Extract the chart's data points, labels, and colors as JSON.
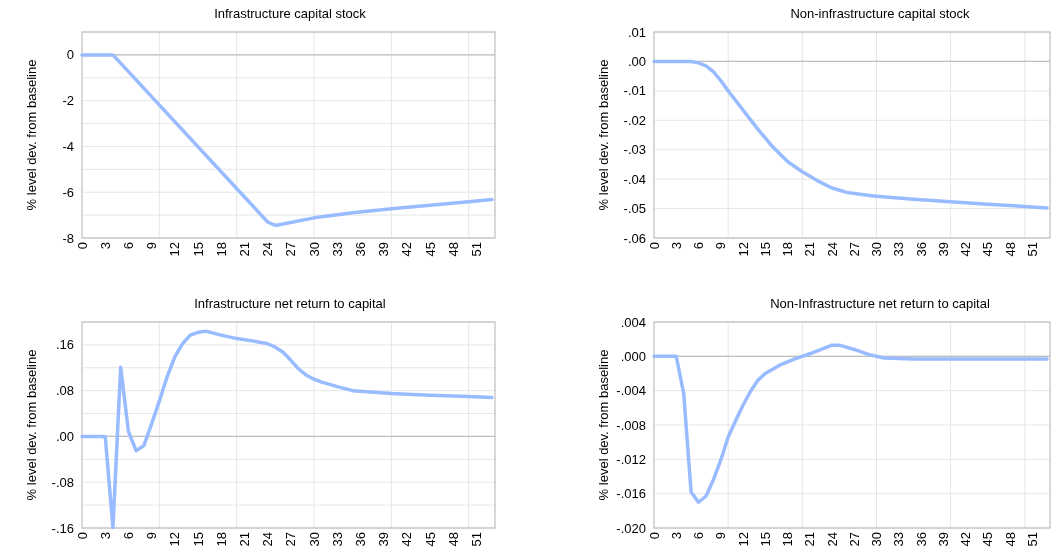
{
  "chart_data": [
    {
      "type": "line",
      "title": "Infrastructure capital stock",
      "ylabel": "% level dev. from baseline",
      "xlim": [
        0,
        53.4
      ],
      "ylim": [
        -8,
        1
      ],
      "grid": true,
      "xticks": [
        0,
        3,
        6,
        9,
        12,
        15,
        18,
        21,
        24,
        27,
        30,
        33,
        36,
        39,
        42,
        45,
        48,
        51,
        {
          "value": 10,
          "label": null
        },
        {
          "value": 20,
          "label": null
        },
        {
          "value": 30,
          "label": null
        },
        {
          "value": 40,
          "label": null
        },
        {
          "value": 50,
          "label": null
        }
      ],
      "yticks": [
        {
          "value": 1,
          "label": null
        },
        0,
        {
          "value": -1,
          "label": null
        },
        -2,
        {
          "value": -3,
          "label": null
        },
        -4,
        {
          "value": -5,
          "label": null
        },
        -6,
        {
          "value": -7,
          "label": null
        },
        -8
      ],
      "ref_lines": [
        {
          "axis": "y",
          "value": 0,
          "color": "#bfbfbf"
        }
      ],
      "x": [
        0,
        1,
        2,
        3,
        4,
        24,
        25,
        30,
        35,
        40,
        45,
        50,
        53
      ],
      "series": [
        {
          "color": "#99bbff",
          "values": [
            0,
            0,
            0,
            0,
            0,
            -7.3,
            -7.45,
            -7.12,
            -6.9,
            -6.72,
            -6.57,
            -6.42,
            -6.32
          ]
        }
      ]
    },
    {
      "type": "line",
      "title": "Non-infrastructure capital stock",
      "ylabel": "% level dev. from baseline",
      "xlim": [
        0,
        53.4
      ],
      "ylim": [
        -0.06,
        0.01
      ],
      "grid": true,
      "xticks": [
        0,
        3,
        6,
        9,
        12,
        15,
        18,
        21,
        24,
        27,
        30,
        33,
        36,
        39,
        42,
        45,
        48,
        51,
        {
          "value": 10,
          "label": null
        },
        {
          "value": 20,
          "label": null
        },
        {
          "value": 30,
          "label": null
        },
        {
          "value": 40,
          "label": null
        },
        {
          "value": 50,
          "label": null
        }
      ],
      "yticks": [
        {
          "value": 0.01,
          "label": ".01"
        },
        {
          "value": 0,
          "label": ".00"
        },
        {
          "value": -0.01,
          "label": "-.01"
        },
        {
          "value": -0.02,
          "label": "-.02"
        },
        {
          "value": -0.03,
          "label": "-.03"
        },
        {
          "value": -0.04,
          "label": "-.04"
        },
        {
          "value": -0.05,
          "label": "-.05"
        },
        {
          "value": -0.06,
          "label": "-.06"
        }
      ],
      "ref_lines": [
        {
          "axis": "y",
          "value": 0,
          "color": "#bfbfbf"
        }
      ],
      "x": [
        0,
        1,
        2,
        3,
        4,
        5,
        6,
        7,
        8,
        9,
        10,
        12,
        14,
        16,
        18,
        20,
        22,
        24,
        26,
        28,
        30,
        35,
        40,
        45,
        50,
        53
      ],
      "series": [
        {
          "color": "#99bbff",
          "values": [
            0,
            0,
            0,
            0,
            0,
            0,
            -0.0005,
            -0.0015,
            -0.0035,
            -0.0065,
            -0.01,
            -0.0165,
            -0.023,
            -0.029,
            -0.034,
            -0.0375,
            -0.0405,
            -0.043,
            -0.0445,
            -0.0452,
            -0.0458,
            -0.0468,
            -0.0477,
            -0.0485,
            -0.0493,
            -0.0498
          ]
        }
      ]
    },
    {
      "type": "line",
      "title": "Infrastructure net return to capital",
      "ylabel": "% level dev. from baseline",
      "xlim": [
        0,
        53.4
      ],
      "ylim": [
        -0.16,
        0.2
      ],
      "grid": true,
      "xticks": [
        0,
        3,
        6,
        9,
        12,
        15,
        18,
        21,
        24,
        27,
        30,
        33,
        36,
        39,
        42,
        45,
        48,
        51,
        {
          "value": 10,
          "label": null
        },
        {
          "value": 20,
          "label": null
        },
        {
          "value": 30,
          "label": null
        },
        {
          "value": 40,
          "label": null
        },
        {
          "value": 50,
          "label": null
        }
      ],
      "yticks": [
        {
          "value": 0.2,
          "label": null
        },
        {
          "value": 0.16,
          "label": ".16"
        },
        {
          "value": 0.12,
          "label": null
        },
        {
          "value": 0.08,
          "label": ".08"
        },
        {
          "value": 0.04,
          "label": null
        },
        {
          "value": 0,
          "label": ".00"
        },
        {
          "value": -0.04,
          "label": null
        },
        {
          "value": -0.08,
          "label": "-.08"
        },
        {
          "value": -0.12,
          "label": null
        },
        {
          "value": -0.16,
          "label": "-.16"
        }
      ],
      "ref_lines": [
        {
          "axis": "y",
          "value": 0,
          "color": "#bfbfbf"
        }
      ],
      "x": [
        0,
        1,
        2,
        3,
        4,
        5,
        6,
        7,
        8,
        9,
        10,
        11,
        12,
        13,
        14,
        15,
        16,
        18,
        20,
        22,
        24,
        25,
        26,
        27,
        28,
        29,
        30,
        31,
        33,
        35,
        40,
        45,
        50,
        53
      ],
      "series": [
        {
          "color": "#99bbff",
          "values": [
            0,
            0,
            0,
            0,
            -0.159,
            0.121,
            0.009,
            -0.025,
            -0.016,
            0.022,
            0.062,
            0.104,
            0.139,
            0.162,
            0.177,
            0.182,
            0.184,
            0.177,
            0.171,
            0.167,
            0.162,
            0.156,
            0.147,
            0.133,
            0.118,
            0.107,
            0.1,
            0.095,
            0.087,
            0.08,
            0.075,
            0.072,
            0.07,
            0.068
          ]
        }
      ]
    },
    {
      "type": "line",
      "title": "Non-Infrastructure net return to capital",
      "ylabel": "% level dev. from baseline",
      "xlim": [
        0,
        53.4
      ],
      "ylim": [
        -0.02,
        0.004
      ],
      "grid": true,
      "xticks": [
        0,
        3,
        6,
        9,
        12,
        15,
        18,
        21,
        24,
        27,
        30,
        33,
        36,
        39,
        42,
        45,
        48,
        51,
        {
          "value": 10,
          "label": null
        },
        {
          "value": 20,
          "label": null
        },
        {
          "value": 30,
          "label": null
        },
        {
          "value": 40,
          "label": null
        },
        {
          "value": 50,
          "label": null
        }
      ],
      "yticks": [
        {
          "value": 0.004,
          "label": ".004"
        },
        {
          "value": 0,
          "label": ".000"
        },
        {
          "value": -0.004,
          "label": "-.004"
        },
        {
          "value": -0.008,
          "label": "-.008"
        },
        {
          "value": -0.012,
          "label": "-.012"
        },
        {
          "value": -0.016,
          "label": "-.016"
        },
        {
          "value": -0.02,
          "label": "-.020"
        }
      ],
      "ref_lines": [
        {
          "axis": "y",
          "value": 0,
          "color": "#bfbfbf"
        }
      ],
      "x": [
        0,
        1,
        2,
        3,
        4,
        5,
        6,
        7,
        8,
        9,
        10,
        11,
        12,
        13,
        14,
        15,
        17,
        19,
        21,
        24,
        25,
        27,
        29,
        31,
        35,
        40,
        45,
        50,
        53
      ],
      "series": [
        {
          "color": "#99bbff",
          "values": [
            0,
            0,
            0,
            0,
            -0.0043,
            -0.0158,
            -0.017,
            -0.0163,
            -0.0144,
            -0.0121,
            -0.0094,
            -0.0075,
            -0.0057,
            -0.0041,
            -0.0028,
            -0.002,
            -0.001,
            -0.0003,
            0.0003,
            0.0013,
            0.0013,
            0.0008,
            0.0002,
            -0.0002,
            -0.0003,
            -0.0003,
            -0.0003,
            -0.0003,
            -0.0003
          ]
        }
      ]
    }
  ]
}
